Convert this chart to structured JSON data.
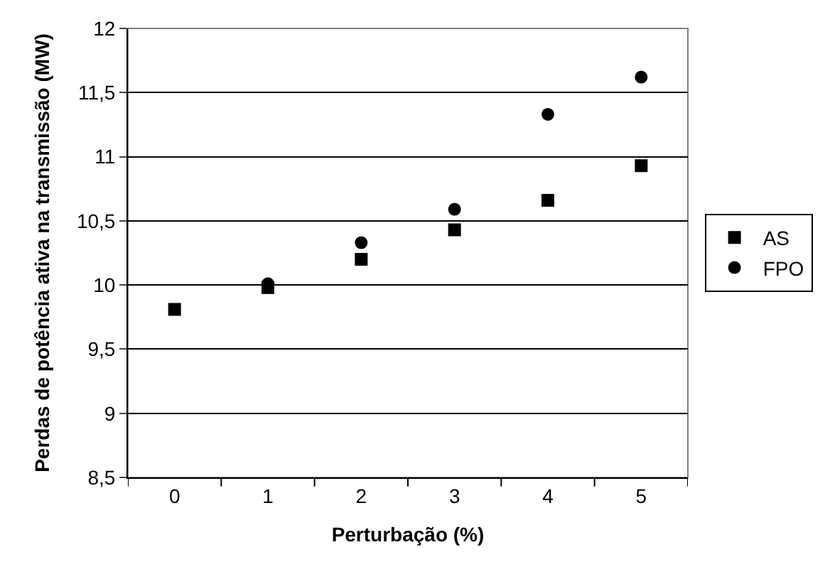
{
  "chart_data": {
    "type": "scatter",
    "xlabel": "Perturbação (%)",
    "ylabel": "Perdas de potência ativa na transmissão (MW)",
    "categories": [
      "0",
      "1",
      "2",
      "3",
      "4",
      "5"
    ],
    "series": [
      {
        "name": "AS",
        "color": "#000000",
        "marker": "square",
        "values": [
          9.81,
          9.98,
          10.2,
          10.43,
          10.66,
          10.93
        ]
      },
      {
        "name": "FPO",
        "color": "#000000",
        "marker": "circle",
        "values": [
          null,
          10.01,
          10.33,
          10.59,
          11.33,
          11.62
        ]
      }
    ],
    "ylim": [
      8.5,
      12
    ],
    "yticks": [
      {
        "value": 8.5,
        "label": "8,5"
      },
      9,
      {
        "value": 9.5,
        "label": "9,5"
      },
      10,
      {
        "value": 10.5,
        "label": "10,5"
      },
      11,
      {
        "value": 11.5,
        "label": "11,5"
      },
      12
    ],
    "grid": "y",
    "legend": "right"
  }
}
